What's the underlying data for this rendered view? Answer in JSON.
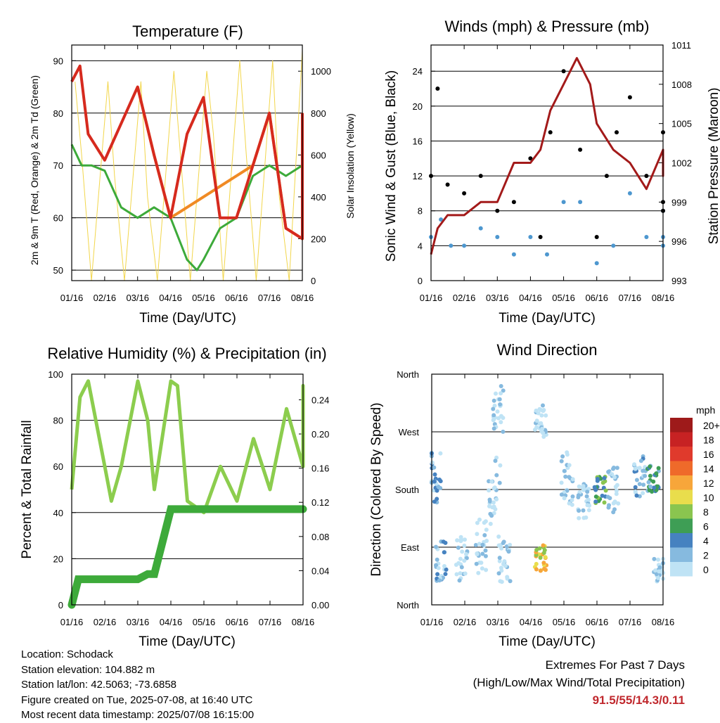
{
  "chart_data": [
    {
      "type": "line",
      "title": "Temperature (F)",
      "xlabel": "Time (Day/UTC)",
      "ylabel": "2m & 9m T (Red, Orange) & 2m Td (Green)",
      "ylabel_right": "Solar Insolation (Yellow)",
      "x_ticks": [
        "01/16",
        "02/16",
        "03/16",
        "04/16",
        "05/16",
        "06/16",
        "07/16",
        "08/16"
      ],
      "ylim": [
        48,
        93
      ],
      "y_ticks": [
        50,
        60,
        70,
        80,
        90
      ],
      "y2lim": [
        0,
        1125
      ],
      "y2_ticks": [
        0,
        200,
        400,
        600,
        800,
        1000
      ],
      "grid": "horizontal",
      "series": [
        {
          "color": "#d62a1e",
          "x": [
            0,
            0.25,
            0.5,
            1,
            1.5,
            2,
            2.5,
            3,
            3.5,
            4,
            4.5,
            5,
            5.5,
            6,
            6.5,
            7,
            7.5,
            7.9
          ],
          "y": [
            86,
            89,
            76,
            71,
            78,
            85,
            72,
            60,
            76,
            83,
            60,
            60,
            70,
            80,
            58,
            56,
            68,
            80
          ]
        },
        {
          "color": "#f08a24",
          "x": [
            2,
            2.5,
            3,
            5.5,
            6,
            6.5,
            7,
            7.5,
            7.9
          ],
          "y": [
            85,
            72,
            60,
            70,
            80,
            58,
            56,
            68,
            80
          ]
        },
        {
          "color": "#3daa3a",
          "x": [
            0,
            0.3,
            0.6,
            1,
            1.5,
            2,
            2.5,
            3,
            3.5,
            3.8,
            4,
            4.5,
            5,
            5.5,
            6,
            6.5,
            7,
            7.5,
            7.9
          ],
          "y": [
            74,
            70,
            70,
            69,
            62,
            60,
            62,
            60,
            52,
            50,
            52,
            58,
            60,
            68,
            70,
            68,
            70,
            72,
            73
          ]
        },
        {
          "color": "#f2d64b",
          "x": [
            0.1,
            0.3,
            0.6,
            1.1,
            1.3,
            1.6,
            2.1,
            2.3,
            2.6,
            3.1,
            3.3,
            3.6,
            4.1,
            4.3,
            4.6,
            5.1,
            5.3,
            5.6,
            6.1,
            6.3,
            6.6,
            7.1,
            7.3,
            7.6
          ],
          "y2": [
            950,
            600,
            0,
            950,
            500,
            0,
            950,
            400,
            0,
            1000,
            600,
            0,
            1000,
            700,
            0,
            1050,
            600,
            0,
            1050,
            400,
            0,
            1100,
            700,
            0
          ]
        }
      ]
    },
    {
      "type": "scatter",
      "title": "Winds (mph) & Pressure (mb)",
      "xlabel": "Time (Day/UTC)",
      "ylabel": "Sonic Wind & Gust (Blue, Black)",
      "ylabel_right": "Station Pressure (Maroon)",
      "x_ticks": [
        "01/16",
        "02/16",
        "03/16",
        "04/16",
        "05/16",
        "06/16",
        "07/16",
        "08/16"
      ],
      "ylim": [
        0,
        27
      ],
      "y_ticks": [
        0,
        4,
        8,
        12,
        16,
        20,
        24
      ],
      "y2lim": [
        993,
        1011
      ],
      "y2_ticks": [
        993,
        996,
        999,
        1002,
        1005,
        1008,
        1011
      ],
      "grid": "horizontal",
      "series": [
        {
          "color": "#000000",
          "x": [
            0,
            0.2,
            0.5,
            1,
            1.5,
            2,
            2.5,
            3,
            3.3,
            3.6,
            4,
            4.5,
            5,
            5.3,
            5.6,
            6,
            6.5,
            7,
            7.5,
            7.9
          ],
          "y": [
            12,
            22,
            11,
            10,
            12,
            8,
            9,
            14,
            5,
            17,
            24,
            15,
            5,
            12,
            17,
            21,
            12,
            17,
            9,
            8
          ]
        },
        {
          "color": "#4d97cf",
          "x": [
            0,
            0.3,
            0.6,
            1,
            1.5,
            2,
            2.5,
            3,
            3.5,
            4,
            4.5,
            5,
            5.5,
            6,
            6.5,
            7,
            7.5,
            7.9
          ],
          "y": [
            5,
            7,
            4,
            4,
            6,
            5,
            3,
            5,
            3,
            9,
            9,
            2,
            4,
            10,
            5,
            8,
            5,
            4
          ]
        },
        {
          "color": "#a31a1a",
          "x": [
            0,
            0.2,
            0.5,
            1,
            1.5,
            2,
            2.5,
            3,
            3.3,
            3.6,
            4,
            4.4,
            4.8,
            5,
            5.5,
            6,
            6.5,
            7,
            7.3,
            7.6,
            8
          ],
          "y2": [
            995,
            997,
            998,
            998,
            999,
            999,
            1002,
            1002,
            1003,
            1006,
            1008,
            1010,
            1008,
            1005,
            1003,
            1002,
            1000,
            1003,
            1002,
            1001,
            1003
          ]
        }
      ]
    },
    {
      "type": "line",
      "title": "Relative Humidity (%) & Precipitation (in)",
      "xlabel": "Time (Day/UTC)",
      "ylabel": "Percent & Total Rainfall",
      "x_ticks": [
        "01/16",
        "02/16",
        "03/16",
        "04/16",
        "05/16",
        "06/16",
        "07/16",
        "08/16"
      ],
      "ylim": [
        0,
        100
      ],
      "y_ticks": [
        0,
        20,
        40,
        60,
        80,
        100
      ],
      "y2lim": [
        0,
        0.27
      ],
      "y2_ticks": [
        "0.00",
        "0.04",
        "0.08",
        "0.12",
        "0.16",
        "0.20",
        "0.24"
      ],
      "grid": "horizontal",
      "series": [
        {
          "color": "#8ccd4e",
          "x": [
            0,
            0.25,
            0.5,
            1,
            1.2,
            1.5,
            2,
            2.3,
            2.5,
            3,
            3.2,
            3.5,
            4,
            4.5,
            5,
            5.5,
            6,
            6.5,
            7,
            7.5,
            7.9
          ],
          "y": [
            50,
            90,
            97,
            60,
            45,
            60,
            97,
            80,
            50,
            97,
            95,
            45,
            40,
            60,
            45,
            72,
            50,
            85,
            60,
            95,
            62
          ]
        },
        {
          "color": "#3daa3a",
          "x": [
            0,
            0.2,
            0.3,
            1,
            2,
            2.3,
            2.5,
            3,
            4,
            5,
            6,
            7,
            8
          ],
          "y2": [
            0,
            0.03,
            0.03,
            0.03,
            0.03,
            0.036,
            0.036,
            0.112,
            0.112,
            0.112,
            0.112,
            0.112,
            0.112
          ]
        }
      ]
    },
    {
      "type": "scatter",
      "title": "Wind Direction",
      "xlabel": "Time (Day/UTC)",
      "ylabel": "Direction (Colored By Speed)",
      "x_ticks": [
        "01/16",
        "02/16",
        "03/16",
        "04/16",
        "05/16",
        "06/16",
        "07/16",
        "08/16"
      ],
      "y_ticks": [
        "North",
        "East",
        "South",
        "West",
        "North"
      ],
      "colorbar": {
        "unit": "mph",
        "labels": [
          "20+",
          "18",
          "16",
          "14",
          "12",
          "10",
          "8",
          "6",
          "4",
          "2",
          "0"
        ],
        "colors": [
          "#9e1a1a",
          "#c72223",
          "#e03a2c",
          "#ef6a2a",
          "#f7a63a",
          "#e9dd4c",
          "#8ac54f",
          "#3e9e55",
          "#4682c0",
          "#86badf",
          "#bfe3f5"
        ]
      }
    }
  ],
  "info": {
    "location": "Location: Schodack",
    "elevation": "Station elevation: 104.882 m",
    "latlon": "Station lat/lon: 42.5063; -73.6858",
    "created": "Figure created on Tue, 2025-07-08, at 16:40 UTC",
    "recent": "Most recent data timestamp: 2025/07/08 16:15:00"
  },
  "extremes": {
    "line1": "Extremes For Past 7 Days",
    "line2": "(High/Low/Max Wind/Total Precipitation)",
    "values": "91.5/55/14.3/0.11"
  }
}
